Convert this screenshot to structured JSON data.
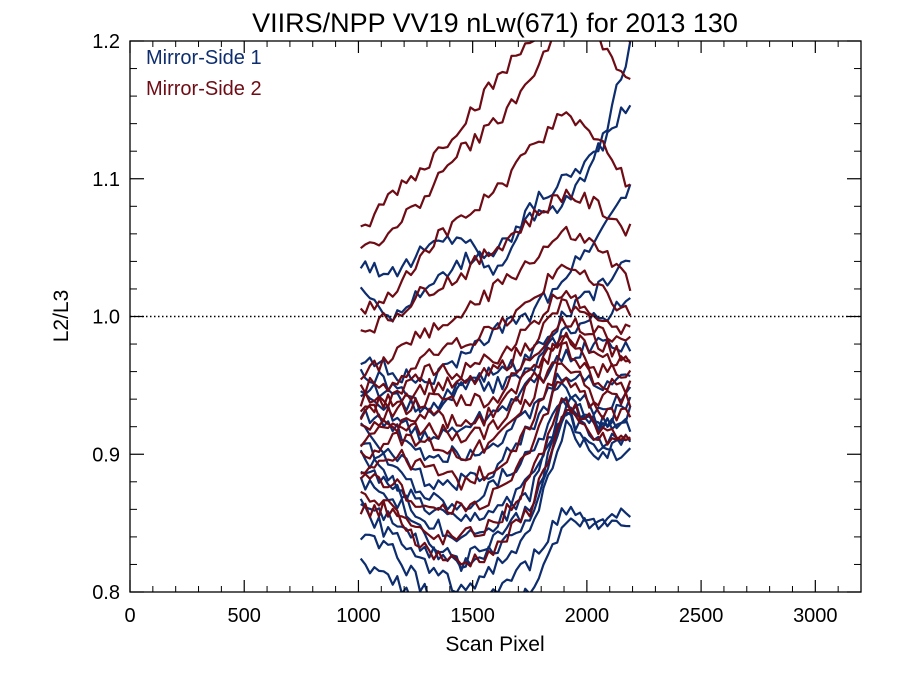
{
  "chart_data": {
    "type": "line",
    "title": "VIIRS/NPP VV19 nLw(671) for 2013 130",
    "xlabel": "Scan Pixel",
    "ylabel": "L2/L3",
    "xlim": [
      0,
      3200
    ],
    "ylim": [
      0.8,
      1.2
    ],
    "xticks": [
      0,
      500,
      1000,
      1500,
      2000,
      2500,
      3000
    ],
    "xtick_labels": [
      "0",
      "500",
      "1000",
      "1500",
      "2000",
      "2500",
      "3000"
    ],
    "yticks": [
      0.8,
      0.9,
      1.0,
      1.1,
      1.2
    ],
    "ytick_labels": [
      "0.8",
      "0.9",
      "1.0",
      "1.1",
      "1.2"
    ],
    "reference_line": {
      "y": 1.0,
      "style": "dotted"
    },
    "grid": false,
    "legend": {
      "placement": "top-left",
      "entries": [
        "Mirror-Side 1",
        "Mirror-Side 2"
      ]
    },
    "x_sample_points": [
      1010,
      1150,
      1300,
      1450,
      1600,
      1750,
      1900,
      2050,
      2200
    ],
    "series": [
      {
        "name": "Mirror-Side 1",
        "color": "#0d2d6e",
        "curves": [
          [
            1.04,
            1.03,
            1.05,
            1.06,
            1.03,
            1.08,
            1.1,
            1.12,
            1.2
          ],
          [
            1.02,
            1.0,
            1.02,
            1.04,
            1.05,
            1.07,
            1.08,
            1.12,
            1.16
          ],
          [
            0.97,
            0.96,
            0.95,
            0.97,
            0.99,
            1.0,
            1.03,
            1.06,
            1.1
          ],
          [
            0.96,
            0.95,
            0.93,
            0.95,
            0.96,
            0.97,
            1.0,
            1.02,
            1.04
          ],
          [
            0.95,
            0.94,
            0.93,
            0.95,
            0.95,
            0.96,
            0.99,
            1.0,
            1.01
          ],
          [
            0.94,
            0.93,
            0.91,
            0.92,
            0.93,
            0.95,
            0.97,
            0.98,
            0.98
          ],
          [
            0.93,
            0.92,
            0.9,
            0.9,
            0.91,
            0.93,
            0.96,
            0.95,
            0.96
          ],
          [
            0.92,
            0.9,
            0.88,
            0.88,
            0.89,
            0.92,
            0.95,
            0.93,
            0.95
          ],
          [
            0.91,
            0.89,
            0.87,
            0.86,
            0.88,
            0.9,
            0.94,
            0.92,
            0.94
          ],
          [
            0.9,
            0.88,
            0.86,
            0.85,
            0.86,
            0.88,
            0.93,
            0.92,
            0.93
          ],
          [
            0.89,
            0.88,
            0.85,
            0.84,
            0.85,
            0.87,
            0.94,
            0.92,
            0.92
          ],
          [
            0.88,
            0.87,
            0.84,
            0.82,
            0.84,
            0.86,
            0.93,
            0.91,
            0.91
          ],
          [
            0.87,
            0.85,
            0.83,
            0.82,
            0.83,
            0.85,
            0.93,
            0.9,
            0.91
          ],
          [
            0.86,
            0.84,
            0.82,
            0.8,
            0.82,
            0.84,
            0.92,
            0.9,
            0.9
          ],
          [
            0.84,
            0.83,
            0.8,
            0.79,
            0.8,
            0.82,
            0.86,
            0.85,
            0.86
          ],
          [
            0.82,
            0.81,
            0.79,
            0.77,
            0.78,
            0.8,
            0.85,
            0.85,
            0.85
          ]
        ]
      },
      {
        "name": "Mirror-Side 2",
        "color": "#6e0b14",
        "curves": [
          [
            1.06,
            1.09,
            1.11,
            1.14,
            1.17,
            1.2,
            1.24,
            1.22,
            1.2
          ],
          [
            1.05,
            1.06,
            1.09,
            1.12,
            1.14,
            1.17,
            1.22,
            1.2,
            1.17
          ],
          [
            1.0,
            1.02,
            1.05,
            1.07,
            1.09,
            1.12,
            1.15,
            1.13,
            1.09
          ],
          [
            0.99,
            1.0,
            1.02,
            1.03,
            1.05,
            1.07,
            1.09,
            1.08,
            1.06
          ],
          [
            0.96,
            0.97,
            0.99,
            1.0,
            1.02,
            1.04,
            1.06,
            1.05,
            1.02
          ],
          [
            0.95,
            0.95,
            0.97,
            0.98,
            0.99,
            1.01,
            1.04,
            1.02,
            1.0
          ],
          [
            0.94,
            0.94,
            0.96,
            0.96,
            0.97,
            0.99,
            1.02,
            1.0,
            0.99
          ],
          [
            0.93,
            0.94,
            0.95,
            0.95,
            0.96,
            0.98,
            1.01,
            0.99,
            0.98
          ],
          [
            0.93,
            0.93,
            0.94,
            0.94,
            0.94,
            0.97,
            1.0,
            0.98,
            0.97
          ],
          [
            0.92,
            0.92,
            0.93,
            0.92,
            0.93,
            0.96,
            0.99,
            0.97,
            0.97
          ],
          [
            0.91,
            0.92,
            0.92,
            0.91,
            0.92,
            0.95,
            0.99,
            0.96,
            0.96
          ],
          [
            0.9,
            0.91,
            0.91,
            0.9,
            0.91,
            0.94,
            0.98,
            0.95,
            0.95
          ],
          [
            0.89,
            0.9,
            0.89,
            0.88,
            0.89,
            0.92,
            0.97,
            0.94,
            0.94
          ],
          [
            0.88,
            0.88,
            0.86,
            0.86,
            0.87,
            0.9,
            0.96,
            0.93,
            0.93
          ],
          [
            0.86,
            0.86,
            0.84,
            0.84,
            0.85,
            0.88,
            0.94,
            0.92,
            0.91
          ],
          [
            0.87,
            0.86,
            0.83,
            0.82,
            0.83,
            0.86,
            0.93,
            0.91,
            0.91
          ]
        ]
      }
    ]
  }
}
